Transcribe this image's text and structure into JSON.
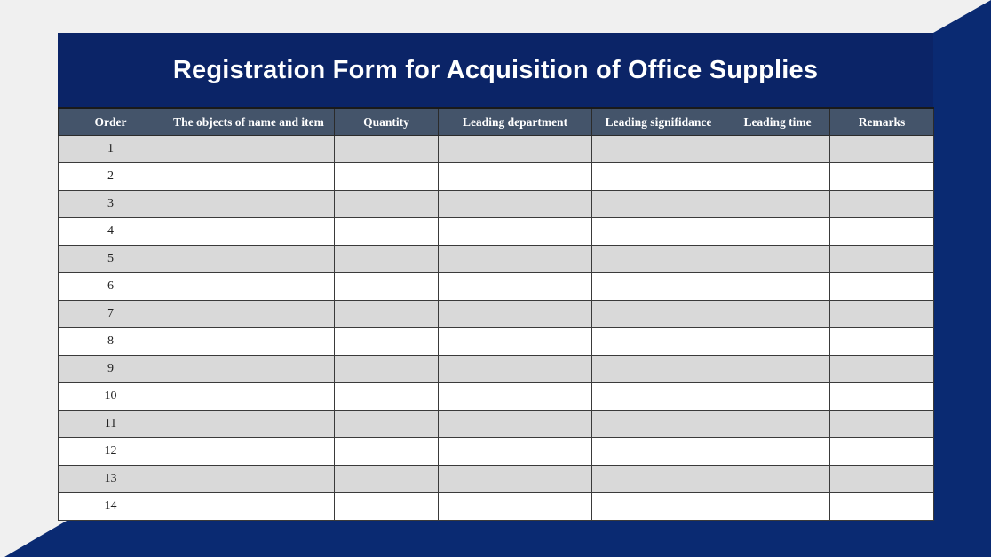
{
  "title": "Registration Form for Acquisition of Office Supplies",
  "colors": {
    "navy": "#0b2467",
    "accent": "#0a2a72",
    "header": "#44546a",
    "stripe": "#d9d9d9"
  },
  "columns": [
    "Order",
    "The objects of name and item",
    "Quantity",
    "Leading department",
    "Leading signifidance",
    "Leading time",
    "Remarks"
  ],
  "rows": [
    "1",
    "2",
    "3",
    "4",
    "5",
    "6",
    "7",
    "8",
    "9",
    "10",
    "11",
    "12",
    "13",
    "14"
  ]
}
